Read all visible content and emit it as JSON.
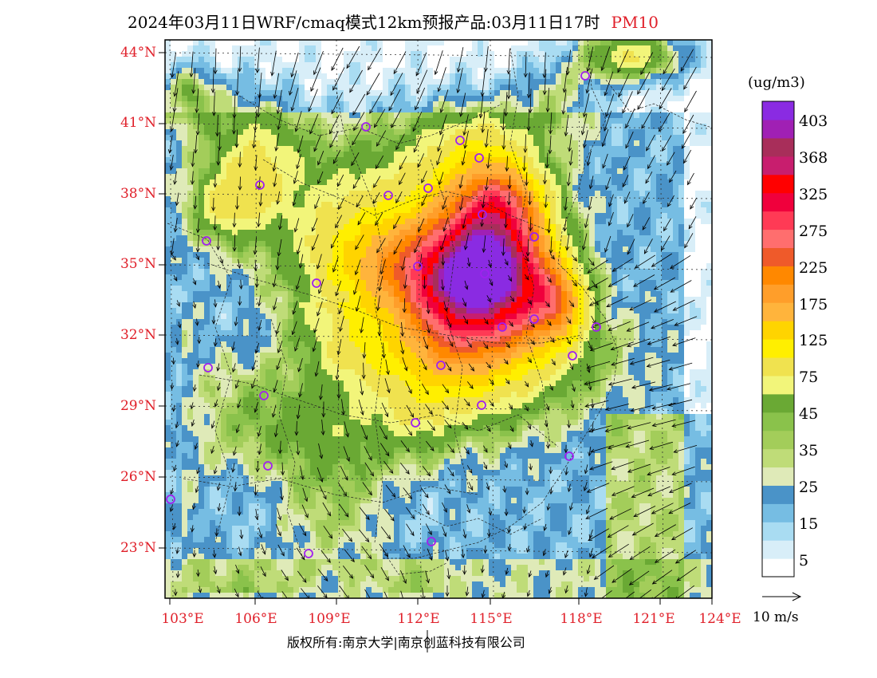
{
  "title": {
    "main": "2024年03月11日WRF/cmaq模式12km预报产品:03月11日17时",
    "pollutant": "PM10"
  },
  "latitude_labels": [
    "44°N",
    "41°N",
    "38°N",
    "35°N",
    "32°N",
    "29°N",
    "26°N",
    "23°N"
  ],
  "longitude_labels": [
    "103°E",
    "106°E",
    "109°E",
    "112°E",
    "115°E",
    "118°E",
    "121°E",
    "124°E"
  ],
  "legend": {
    "unit": "(ug/m3)",
    "labels": [
      "403",
      "368",
      "325",
      "275",
      "225",
      "175",
      "125",
      "75",
      "45",
      "35",
      "25",
      "15",
      "5"
    ],
    "colors": [
      "#ffffff",
      "#d8eef8",
      "#a9dcf2",
      "#76bde3",
      "#4a93c8",
      "#dfeab8",
      "#bfdc78",
      "#a3cd5a",
      "#8ac24b",
      "#6aa934",
      "#f2f57a",
      "#f0e24f",
      "#ffef00",
      "#ffd400",
      "#ffb43c",
      "#ff9e2a",
      "#ff8800",
      "#ef5a2a",
      "#ff6e6e",
      "#ff3a55",
      "#f0003c",
      "#ff0000",
      "#c81e6e",
      "#a82e5a",
      "#a020b4",
      "#8a2be2"
    ]
  },
  "wind_scale": {
    "label": "10 m/s"
  },
  "copyright": "版权所有:南京大学|南京创蓝科技有限公司",
  "colors": {
    "axis_label": "#e0202a",
    "station_marker": "#a020f0"
  }
}
